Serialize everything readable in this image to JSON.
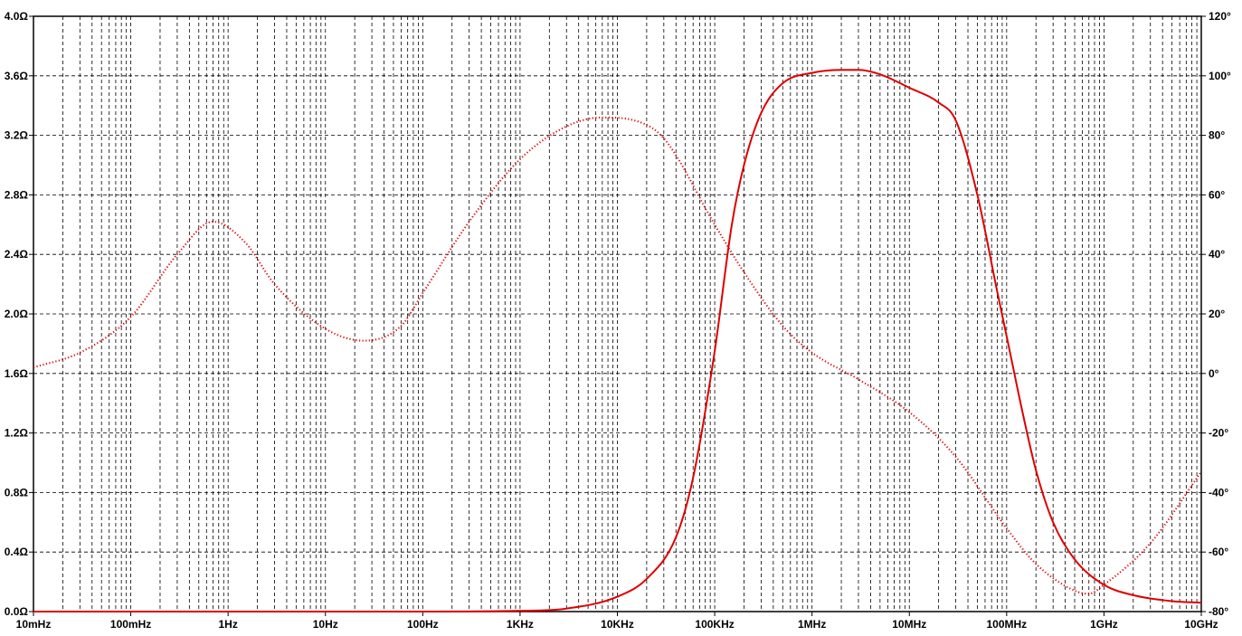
{
  "chart_data": {
    "type": "line",
    "x_scale": "log",
    "x_range_hz": [
      0.01,
      10000000000
    ],
    "x_tick_labels": [
      "10mHz",
      "100mHz",
      "1Hz",
      "10Hz",
      "100Hz",
      "1KHz",
      "10KHz",
      "100KHz",
      "1MHz",
      "10MHz",
      "100MHz",
      "1GHz",
      "10GHz"
    ],
    "y_left_range_ohm": [
      0.0,
      4.0
    ],
    "y_left_tick_labels": [
      "0.0Ω",
      "0.4Ω",
      "0.8Ω",
      "1.2Ω",
      "1.6Ω",
      "2.0Ω",
      "2.4Ω",
      "2.8Ω",
      "3.2Ω",
      "3.6Ω",
      "4.0Ω"
    ],
    "y_right_range_deg": [
      -80,
      120
    ],
    "y_right_tick_labels": [
      "-80°",
      "-60°",
      "-40°",
      "-20°",
      "0°",
      "20°",
      "40°",
      "60°",
      "80°",
      "100°",
      "120°"
    ],
    "grid": true,
    "series": [
      {
        "style": "solid",
        "axis": "left",
        "color": "#dd0000",
        "x_hz": [
          0.01,
          1,
          100,
          1000,
          3000,
          10000,
          20000,
          40000,
          60000,
          100000,
          150000,
          200000,
          300000,
          500000,
          1000000,
          2000000,
          3000000,
          5000000,
          10000000,
          20000000,
          30000000,
          50000000,
          80000000,
          100000000,
          150000000,
          200000000,
          300000000,
          500000000,
          1000000000,
          2000000000,
          5000000000,
          10000000000
        ],
        "y_ohm": [
          0.0,
          0.0,
          0.0,
          0.005,
          0.02,
          0.1,
          0.22,
          0.5,
          0.9,
          1.75,
          2.6,
          3.0,
          3.35,
          3.55,
          3.62,
          3.64,
          3.64,
          3.61,
          3.52,
          3.42,
          3.3,
          2.8,
          2.15,
          1.85,
          1.3,
          0.95,
          0.6,
          0.35,
          0.18,
          0.11,
          0.07,
          0.06
        ]
      },
      {
        "style": "dotted",
        "axis": "right",
        "color": "#dd0000",
        "x_hz": [
          0.01,
          0.03,
          0.1,
          0.3,
          0.7,
          1.5,
          3,
          10,
          25,
          60,
          100,
          300,
          1000,
          3000,
          7000,
          15000,
          30000,
          100000,
          200000,
          500000,
          1000000,
          3000000,
          10000000,
          30000000,
          100000000,
          200000000,
          500000000,
          700000000,
          1000000000,
          3000000000,
          10000000000
        ],
        "y_deg": [
          2,
          7,
          19,
          40,
          51,
          44,
          30,
          15,
          11,
          16,
          27,
          51,
          72,
          83,
          86,
          85,
          79,
          50,
          34,
          16,
          7,
          -2,
          -13,
          -28,
          -52,
          -64,
          -73,
          -74,
          -71,
          -57,
          -33
        ]
      }
    ]
  }
}
